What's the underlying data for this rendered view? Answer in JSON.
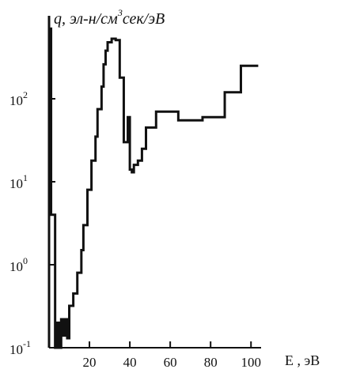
{
  "chart_data": {
    "type": "line",
    "title": "",
    "xlabel": "E , эВ",
    "ylabel": "q, эл-н/см³сек/эВ",
    "ylabel_parts": {
      "q": "q,",
      "middle": " эл-н/см",
      "sup": "3",
      "tail": "сек/эВ"
    },
    "xlim": [
      0,
      105
    ],
    "ylim": [
      0.1,
      1000
    ],
    "y_scale": "log",
    "grid": false,
    "x_ticks": [
      {
        "value": 20,
        "label": "20"
      },
      {
        "value": 40,
        "label": "40"
      },
      {
        "value": 60,
        "label": "60"
      },
      {
        "value": 80,
        "label": "80"
      },
      {
        "value": 100,
        "label": "100"
      }
    ],
    "y_ticks": [
      {
        "value": 0.1,
        "base": "10",
        "exp": "-1"
      },
      {
        "value": 1,
        "base": "10",
        "exp": "0"
      },
      {
        "value": 10,
        "base": "10",
        "exp": "1"
      },
      {
        "value": 100,
        "base": "10",
        "exp": "2"
      }
    ],
    "series": [
      {
        "x": [
          0,
          1,
          1,
          3,
          3,
          4,
          4,
          5,
          5,
          6,
          6,
          7,
          7,
          8,
          8,
          9,
          9,
          10,
          10,
          12,
          12,
          14,
          14,
          16,
          16,
          17,
          17,
          19,
          19,
          21,
          21,
          23,
          23,
          24,
          24,
          26,
          26,
          27,
          27,
          28,
          28,
          29,
          29,
          31,
          31,
          33,
          33,
          35,
          35,
          37,
          37,
          39,
          39,
          40,
          40,
          41,
          41,
          42,
          42,
          44,
          44,
          46,
          46,
          48,
          48,
          53,
          53,
          64,
          64,
          76,
          76,
          87,
          87,
          95,
          95,
          103
        ],
        "y": [
          700,
          700,
          4.0,
          4.0,
          0.1,
          0.1,
          0.2,
          0.2,
          0.1,
          0.1,
          0.22,
          0.22,
          0.14,
          0.14,
          0.22,
          0.22,
          0.13,
          0.13,
          0.32,
          0.32,
          0.45,
          0.45,
          0.8,
          0.8,
          1.5,
          1.5,
          3.0,
          3.0,
          8.0,
          8.0,
          18,
          18,
          35,
          35,
          75,
          75,
          140,
          140,
          260,
          260,
          380,
          380,
          480,
          480,
          530,
          530,
          510,
          510,
          180,
          180,
          30,
          30,
          60,
          60,
          14,
          14,
          13,
          13,
          16,
          16,
          18,
          18,
          25,
          25,
          45,
          45,
          70,
          70,
          55,
          55,
          60,
          60,
          120,
          120,
          250,
          250
        ]
      }
    ]
  }
}
